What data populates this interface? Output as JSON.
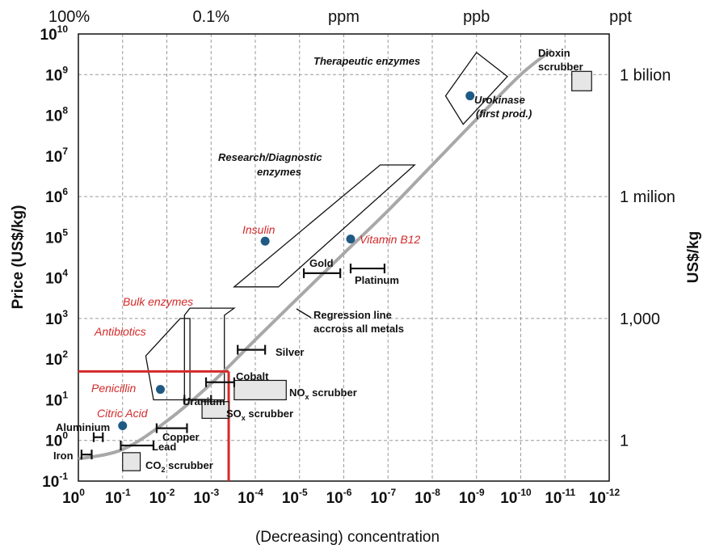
{
  "chart_data": {
    "type": "scatter",
    "xlabel": "(Decreasing) concentration",
    "ylabel": "Price (US$/kg)",
    "right_ylabel": "US$/kg",
    "x_scale": "log (concentration fraction, decreasing to the right)",
    "y_scale": "log",
    "xlim": [
      1,
      1e-12
    ],
    "ylim": [
      0.1,
      10000000000.0
    ],
    "grid": true,
    "x_tick_labels": [
      {
        "base": "10",
        "exp": "0"
      },
      {
        "base": "10",
        "exp": "-1"
      },
      {
        "base": "10",
        "exp": "-2"
      },
      {
        "base": "10",
        "exp": "-3"
      },
      {
        "base": "10",
        "exp": "-4"
      },
      {
        "base": "10",
        "exp": "-5"
      },
      {
        "base": "10",
        "exp": "-6"
      },
      {
        "base": "10",
        "exp": "-7"
      },
      {
        "base": "10",
        "exp": "-8"
      },
      {
        "base": "10",
        "exp": "-9"
      },
      {
        "base": "10",
        "exp": "-10"
      },
      {
        "base": "10",
        "exp": "-11"
      },
      {
        "base": "10",
        "exp": "-12"
      }
    ],
    "y_tick_labels": [
      {
        "base": "10",
        "exp": "-1"
      },
      {
        "base": "10",
        "exp": "0"
      },
      {
        "base": "10",
        "exp": "1"
      },
      {
        "base": "10",
        "exp": "2"
      },
      {
        "base": "10",
        "exp": "3"
      },
      {
        "base": "10",
        "exp": "4"
      },
      {
        "base": "10",
        "exp": "5"
      },
      {
        "base": "10",
        "exp": "6"
      },
      {
        "base": "10",
        "exp": "7"
      },
      {
        "base": "10",
        "exp": "8"
      },
      {
        "base": "10",
        "exp": "9"
      },
      {
        "base": "10",
        "exp": "10"
      }
    ],
    "top_axis_labels": [
      {
        "text": "100%",
        "x": 1
      },
      {
        "text": "0.1%",
        "x": 0.001
      },
      {
        "text": "ppm",
        "x": 1e-06
      },
      {
        "text": "ppb",
        "x": 1e-09
      },
      {
        "text": "ppt",
        "x": 1e-12
      }
    ],
    "right_axis_labels": [
      {
        "text": "1 bilion",
        "y": 1000000000.0
      },
      {
        "text": "1 milion",
        "y": 1000000.0
      },
      {
        "text": "1,000",
        "y": 1000.0
      },
      {
        "text": "1",
        "y": 1
      }
    ],
    "points": [
      {
        "name": "Urokinase (first prod.)",
        "x": 1.4e-09,
        "y": 300000000.0
      },
      {
        "name": "Insulin",
        "x": 6e-05,
        "y": 80000.0
      },
      {
        "name": "Vitamin B12",
        "x": 7e-07,
        "y": 90000.0
      },
      {
        "name": "Penicillin",
        "x": 0.014,
        "y": 18
      },
      {
        "name": "Citric Acid",
        "x": 0.1,
        "y": 2.3
      }
    ],
    "ranges": [
      {
        "name": "Gold",
        "x": [
          8e-06,
          1.2e-06
        ],
        "y": 13000.0
      },
      {
        "name": "Platinum",
        "x": [
          7e-07,
          1.2e-07
        ],
        "y": 17000.0
      },
      {
        "name": "Silver",
        "x": [
          0.00025,
          6e-05
        ],
        "y": 170
      },
      {
        "name": "Cobalt",
        "x": [
          0.0013,
          0.0003
        ],
        "y": 27
      },
      {
        "name": "Uranium",
        "x": [
          0.004,
          0.001
        ],
        "y": 10
      },
      {
        "name": "Copper",
        "x": [
          0.017,
          0.0035
        ],
        "y": 2
      },
      {
        "name": "Aluminium",
        "x": [
          0.45,
          0.28
        ],
        "y": 1.2
      },
      {
        "name": "Lead",
        "x": [
          0.11,
          0.02
        ],
        "y": 0.75
      },
      {
        "name": "Iron",
        "x": [
          0.85,
          0.5
        ],
        "y": 0.45
      }
    ],
    "boxes": [
      {
        "name": "Dioxin scrubber",
        "x": [
          7e-12,
          2.5e-12
        ],
        "y": [
          400000000.0,
          1200000000.0
        ]
      },
      {
        "name": "NOx scrubber",
        "x": [
          0.0003,
          2e-05
        ],
        "y": [
          10,
          30
        ]
      },
      {
        "name": "SOx scrubber",
        "x": [
          0.0016,
          0.0004
        ],
        "y": [
          3.5,
          9
        ]
      },
      {
        "name": "CO2 scrubber",
        "x": [
          0.1,
          0.04
        ],
        "y": [
          0.18,
          0.5
        ]
      }
    ],
    "regions": [
      {
        "name": "Therapeutic enzymes",
        "polygon": [
          [
            5e-09,
            300000000.0
          ],
          [
            1e-09,
            3500000000.0
          ],
          [
            2e-10,
            900000000.0
          ],
          [
            2e-09,
            60000000.0
          ]
        ]
      },
      {
        "name": "Research/Diagnostic enzymes",
        "polygon": [
          [
            0.0003,
            6000
          ],
          [
            1.5e-07,
            6000000.0
          ],
          [
            2.5e-08,
            6000000.0
          ],
          [
            3e-05,
            6000
          ]
        ]
      },
      {
        "name": "Bulk enzymes",
        "polygon": [
          [
            0.004,
            1200
          ],
          [
            0.004,
            10
          ],
          [
            0.0005,
            10
          ],
          [
            0.0005,
            1200
          ],
          [
            0.0003,
            1800
          ],
          [
            0.003,
            1800
          ]
        ]
      },
      {
        "name": "Antibiotics",
        "polygon": [
          [
            0.03,
            120
          ],
          [
            0.005,
            1000
          ],
          [
            0.003,
            1000
          ],
          [
            0.003,
            10
          ],
          [
            0.02,
            10
          ]
        ]
      }
    ],
    "regression_line": {
      "name": "Regression line accross all metals",
      "points": [
        [
          1,
          0.35
        ],
        [
          0.1,
          0.6
        ],
        [
          0.01,
          3
        ],
        [
          0.001,
          25
        ],
        [
          0.0001,
          300
        ],
        [
          1e-05,
          3500
        ],
        [
          1e-06,
          40000.0
        ],
        [
          1e-07,
          450000.0
        ],
        [
          1e-08,
          6000000.0
        ],
        [
          1e-09,
          80000000.0
        ],
        [
          1e-10,
          1000000000.0
        ],
        [
          2e-11,
          4000000000.0
        ]
      ]
    },
    "reference_lines": {
      "x": 0.0004,
      "y": 50
    }
  },
  "labels": {
    "therapeutic": "Therapeutic enzymes",
    "urokinase_1": "Urokinase",
    "urokinase_2": "(first prod.)",
    "dioxin_1": "Dioxin",
    "dioxin_2": "scrubber",
    "research_1": "Research/Diagnostic",
    "research_2": "enzymes",
    "insulin": "Insulin",
    "vitaminb12": "Vitamin B12",
    "gold": "Gold",
    "platinum": "Platinum",
    "bulk": "Bulk enzymes",
    "antibiotics": "Antibiotics",
    "regression_1": "Regression line",
    "regression_2": "accross all metals",
    "silver": "Silver",
    "cobalt": "Cobalt",
    "penicillin": "Penicillin",
    "uranium": "Uranium",
    "nox_pre": "NO",
    "nox_sub": "x",
    "nox_post": " scrubber",
    "sox_pre": "SO",
    "sox_sub": "x",
    "sox_post": " scrubber",
    "citric": "Citric Acid",
    "aluminium": "Aluminium",
    "copper": "Copper",
    "lead": "Lead",
    "iron": "Iron",
    "co2_pre": "CO",
    "co2_sub": "2",
    "co2_post": " scrubber"
  },
  "colors": {
    "point": "#1f5a85",
    "red": "#d42a2a",
    "regression": "#a8a8a8",
    "box_fill": "#e6e6e6",
    "grid": "#9a9a9a"
  }
}
